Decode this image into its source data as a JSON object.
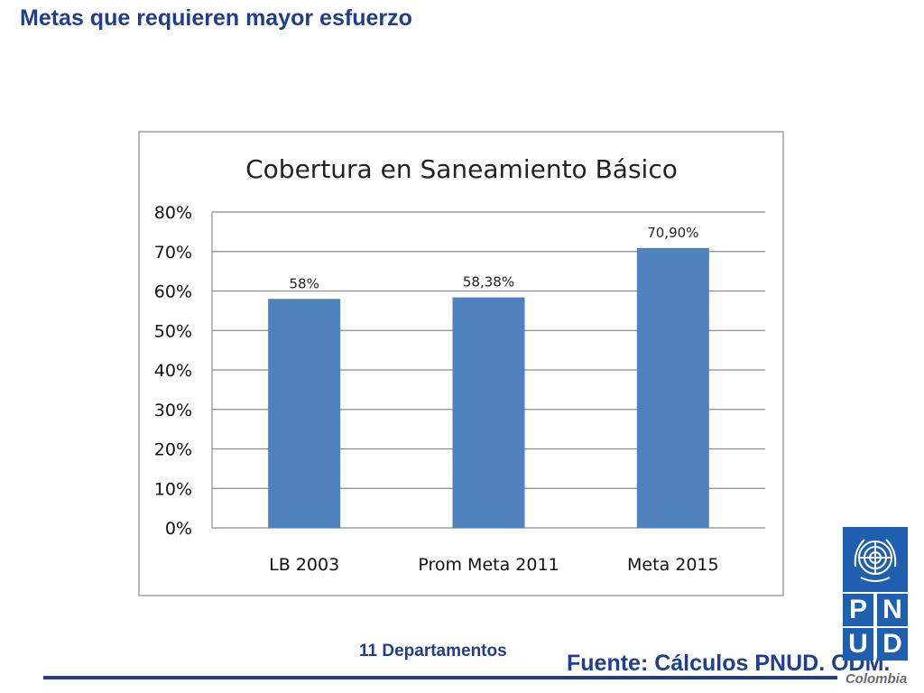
{
  "slide": {
    "title": "Metas que requieren mayor esfuerzo",
    "subtitle": "11 Departamentos",
    "source": "Fuente: Cálculos PNUD. ODM."
  },
  "logo": {
    "letters": [
      "P",
      "N",
      "U",
      "D"
    ],
    "country": "Colombia",
    "color": "#1f5fb0"
  },
  "chart_data": {
    "type": "bar",
    "title": "Cobertura en Saneamiento Básico",
    "categories": [
      "LB 2003",
      "Prom Meta 2011",
      "Meta 2015"
    ],
    "values": [
      58,
      58.38,
      70.9
    ],
    "data_labels": [
      "58%",
      "58,38%",
      "70,90%"
    ],
    "yticks": [
      "0%",
      "10%",
      "20%",
      "30%",
      "40%",
      "50%",
      "60%",
      "70%",
      "80%"
    ],
    "ylim": [
      0,
      80
    ],
    "grid": true,
    "legend": "none",
    "bar_color": "#4f81bd"
  }
}
